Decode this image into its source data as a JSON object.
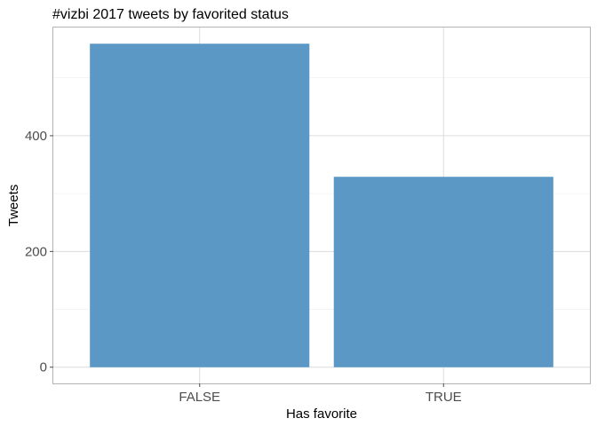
{
  "chart_data": {
    "type": "bar",
    "title": "#vizbi 2017 tweets by favorited status",
    "xlabel": "Has favorite",
    "ylabel": "Tweets",
    "categories": [
      "FALSE",
      "TRUE"
    ],
    "values": [
      559,
      329
    ],
    "ylim": [
      -28,
      587
    ],
    "yticks": [
      0,
      200,
      400
    ],
    "ytick_labels": [
      "0",
      "200",
      "400"
    ],
    "grid": true,
    "legend": "none"
  },
  "colors": {
    "bar": "#5b98c5",
    "grid_major": "#dcdcdc",
    "grid_minor": "#eeeeee",
    "panel_border": "#b3b3b3",
    "tick": "#4d4d4d"
  }
}
